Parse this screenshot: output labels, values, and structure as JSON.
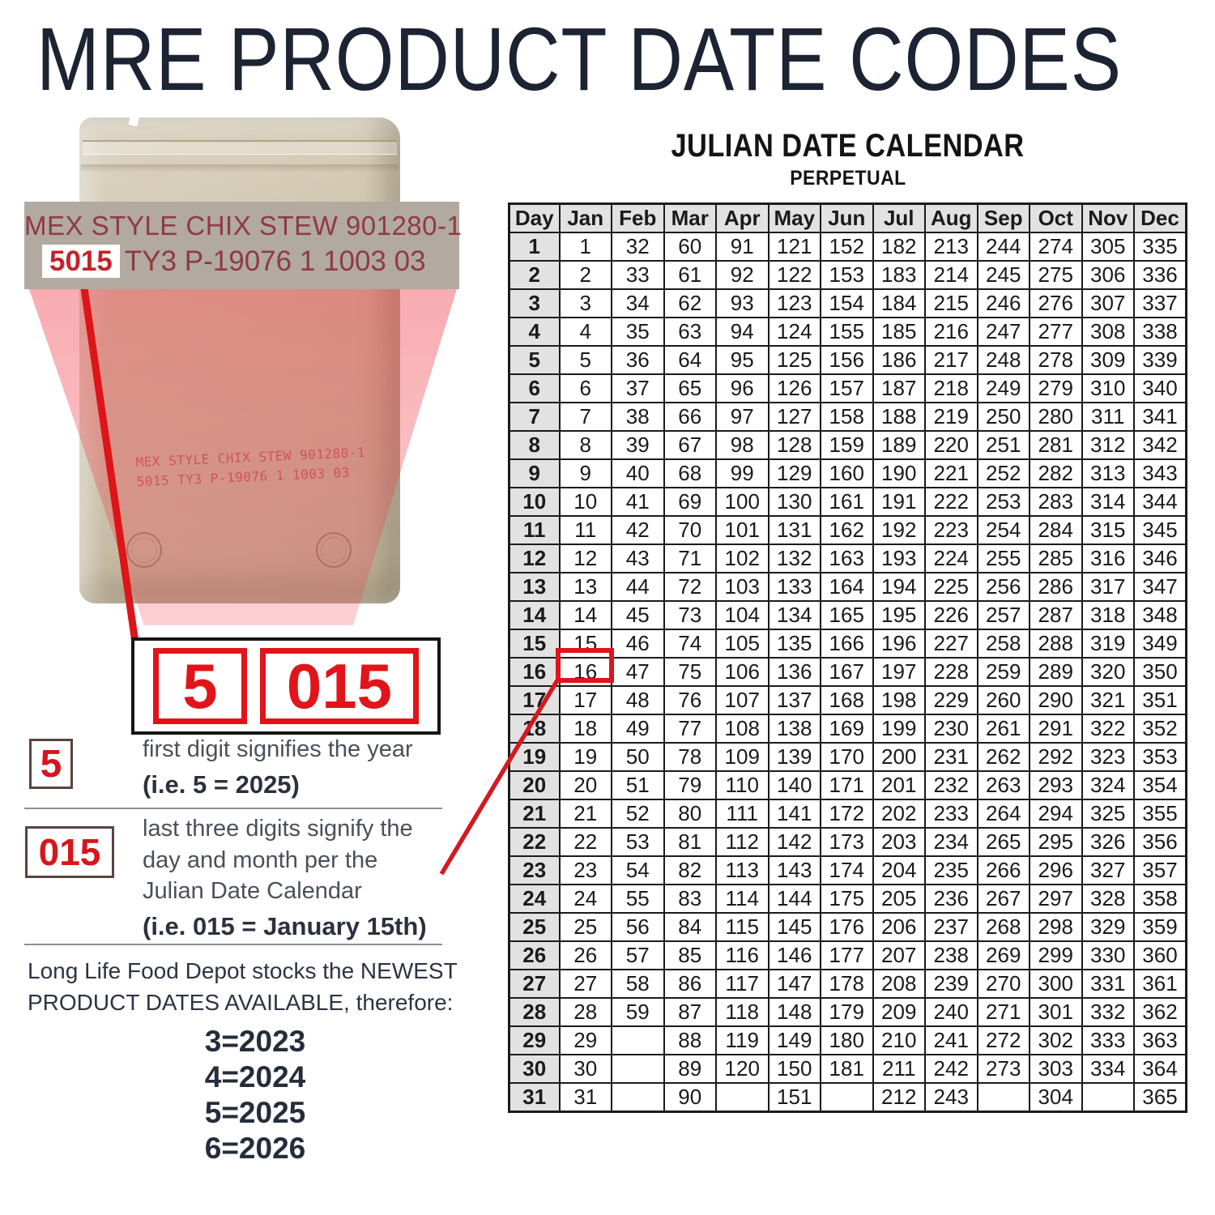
{
  "page": {
    "title": "MRE PRODUCT DATE CODES"
  },
  "pouch_label": {
    "line1": "MEX STYLE CHIX STEW 901280-1",
    "code": "5015",
    "line2_rest": "TY3 P-19076 1 1003 03",
    "print_line1": "MEX STYLE CHIX STEW 901280-1",
    "print_line2": "5015 TY3 P-19076 1 1003 03"
  },
  "code_breakdown": {
    "year_digit": "5",
    "julian_digits": "015"
  },
  "explanations": {
    "year_box": "5",
    "year_text": "first digit signifies the year",
    "year_example": "(i.e. 5 = 2025)",
    "day_box": "015",
    "day_text": "last three digits signify the\nday and month per the\nJulian Date Calendar",
    "day_example": "(i.e. 015 = January 15th)"
  },
  "footer": {
    "statement": "Long Life Food Depot stocks the NEWEST\nPRODUCT DATES AVAILABLE, therefore:",
    "years": [
      "3=2023",
      "4=2024",
      "5=2025",
      "6=2026"
    ]
  },
  "calendar": {
    "title": "JULIAN DATE CALENDAR",
    "subtitle": "PERPETUAL",
    "columns": [
      "Day",
      "Jan",
      "Feb",
      "Mar",
      "Apr",
      "May",
      "Jun",
      "Jul",
      "Aug",
      "Sep",
      "Oct",
      "Nov",
      "Dec"
    ],
    "highlight": {
      "day": "15",
      "month": "Jan",
      "value": "15"
    },
    "rows": [
      [
        1,
        1,
        32,
        60,
        91,
        121,
        152,
        182,
        213,
        244,
        274,
        305,
        335
      ],
      [
        2,
        2,
        33,
        61,
        92,
        122,
        153,
        183,
        214,
        245,
        275,
        306,
        336
      ],
      [
        3,
        3,
        34,
        62,
        93,
        123,
        154,
        184,
        215,
        246,
        276,
        307,
        337
      ],
      [
        4,
        4,
        35,
        63,
        94,
        124,
        155,
        185,
        216,
        247,
        277,
        308,
        338
      ],
      [
        5,
        5,
        36,
        64,
        95,
        125,
        156,
        186,
        217,
        248,
        278,
        309,
        339
      ],
      [
        6,
        6,
        37,
        65,
        96,
        126,
        157,
        187,
        218,
        249,
        279,
        310,
        340
      ],
      [
        7,
        7,
        38,
        66,
        97,
        127,
        158,
        188,
        219,
        250,
        280,
        311,
        341
      ],
      [
        8,
        8,
        39,
        67,
        98,
        128,
        159,
        189,
        220,
        251,
        281,
        312,
        342
      ],
      [
        9,
        9,
        40,
        68,
        99,
        129,
        160,
        190,
        221,
        252,
        282,
        313,
        343
      ],
      [
        10,
        10,
        41,
        69,
        100,
        130,
        161,
        191,
        222,
        253,
        283,
        314,
        344
      ],
      [
        11,
        11,
        42,
        70,
        101,
        131,
        162,
        192,
        223,
        254,
        284,
        315,
        345
      ],
      [
        12,
        12,
        43,
        71,
        102,
        132,
        163,
        193,
        224,
        255,
        285,
        316,
        346
      ],
      [
        13,
        13,
        44,
        72,
        103,
        133,
        164,
        194,
        225,
        256,
        286,
        317,
        347
      ],
      [
        14,
        14,
        45,
        73,
        104,
        134,
        165,
        195,
        226,
        257,
        287,
        318,
        348
      ],
      [
        15,
        15,
        46,
        74,
        105,
        135,
        166,
        196,
        227,
        258,
        288,
        319,
        349
      ],
      [
        16,
        16,
        47,
        75,
        106,
        136,
        167,
        197,
        228,
        259,
        289,
        320,
        350
      ],
      [
        17,
        17,
        48,
        76,
        107,
        137,
        168,
        198,
        229,
        260,
        290,
        321,
        351
      ],
      [
        18,
        18,
        49,
        77,
        108,
        138,
        169,
        199,
        230,
        261,
        291,
        322,
        352
      ],
      [
        19,
        19,
        50,
        78,
        109,
        139,
        170,
        200,
        231,
        262,
        292,
        323,
        353
      ],
      [
        20,
        20,
        51,
        79,
        110,
        140,
        171,
        201,
        232,
        263,
        293,
        324,
        354
      ],
      [
        21,
        21,
        52,
        80,
        111,
        141,
        172,
        202,
        233,
        264,
        294,
        325,
        355
      ],
      [
        22,
        22,
        53,
        81,
        112,
        142,
        173,
        203,
        234,
        265,
        295,
        326,
        356
      ],
      [
        23,
        23,
        54,
        82,
        113,
        143,
        174,
        204,
        235,
        266,
        296,
        327,
        357
      ],
      [
        24,
        24,
        55,
        83,
        114,
        144,
        175,
        205,
        236,
        267,
        297,
        328,
        358
      ],
      [
        25,
        25,
        56,
        84,
        115,
        145,
        176,
        206,
        237,
        268,
        298,
        329,
        359
      ],
      [
        26,
        26,
        57,
        85,
        116,
        146,
        177,
        207,
        238,
        269,
        299,
        330,
        360
      ],
      [
        27,
        27,
        58,
        86,
        117,
        147,
        178,
        208,
        239,
        270,
        300,
        331,
        361
      ],
      [
        28,
        28,
        59,
        87,
        118,
        148,
        179,
        209,
        240,
        271,
        301,
        332,
        362
      ],
      [
        29,
        29,
        null,
        88,
        119,
        149,
        180,
        210,
        241,
        272,
        302,
        333,
        363
      ],
      [
        30,
        30,
        null,
        89,
        120,
        150,
        181,
        211,
        242,
        273,
        303,
        334,
        364
      ],
      [
        31,
        31,
        null,
        90,
        null,
        151,
        null,
        212,
        243,
        null,
        304,
        null,
        365
      ]
    ]
  },
  "colors": {
    "accent_red": "#dd1418",
    "dark_red_label": "#8e3a42",
    "callout_bg": "#b2a9a0",
    "title_navy": "#1c2433",
    "table_header_bg": "#e2e2e2",
    "pouch_tan": "#d3c9b3"
  }
}
